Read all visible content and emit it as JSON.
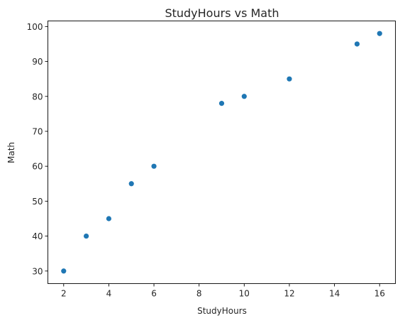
{
  "chart_data": {
    "type": "scatter",
    "title": "StudyHours vs Math",
    "xlabel": "StudyHours",
    "ylabel": "Math",
    "xlim": [
      1.3,
      16.7
    ],
    "ylim": [
      26.4,
      101.6
    ],
    "xticks": [
      2,
      4,
      6,
      8,
      10,
      12,
      14,
      16
    ],
    "yticks": [
      30,
      40,
      50,
      60,
      70,
      80,
      90,
      100
    ],
    "grid": false,
    "point_color": "#1f77b4",
    "points": [
      {
        "x": 2,
        "y": 30
      },
      {
        "x": 3,
        "y": 40
      },
      {
        "x": 4,
        "y": 45
      },
      {
        "x": 5,
        "y": 55
      },
      {
        "x": 6,
        "y": 60
      },
      {
        "x": 9,
        "y": 78
      },
      {
        "x": 10,
        "y": 80
      },
      {
        "x": 12,
        "y": 85
      },
      {
        "x": 15,
        "y": 95
      },
      {
        "x": 16,
        "y": 98
      }
    ]
  }
}
